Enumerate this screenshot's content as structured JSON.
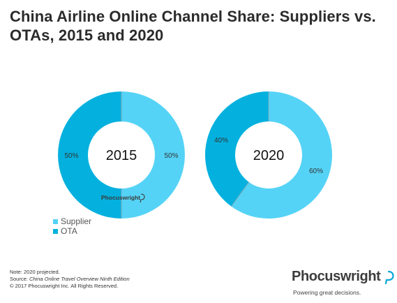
{
  "title": "China Airline Online Channel Share: Suppliers vs. OTAs, 2015 and 2020",
  "colors": {
    "supplier": "#55d3f6",
    "ota": "#04b1de",
    "divider": "#7ea9bd"
  },
  "chart_data": [
    {
      "type": "pie",
      "variant": "donut",
      "center_label": "2015",
      "slices": [
        {
          "label": "Supplier",
          "value": 50,
          "display": "50%"
        },
        {
          "label": "OTA",
          "value": 50,
          "display": "50%"
        }
      ],
      "watermark": "Phocuswright"
    },
    {
      "type": "pie",
      "variant": "donut",
      "center_label": "2020",
      "slices": [
        {
          "label": "Supplier",
          "value": 60,
          "display": "60%"
        },
        {
          "label": "OTA",
          "value": 40,
          "display": "40%"
        }
      ]
    }
  ],
  "legend": [
    {
      "label": "Supplier",
      "color": "#55d3f6"
    },
    {
      "label": "OTA",
      "color": "#04b1de"
    }
  ],
  "footer": {
    "note": "Note: 2020 projected.",
    "source_prefix": "Source: ",
    "source_title": "China Online Travel Overview Ninth Edition",
    "copyright": "© 2017 Phocuswright Inc. All Rights Reserved."
  },
  "brand": {
    "name": "Phocuswright",
    "tagline": "Powering great decisions.",
    "icon": "speech-bubble-icon"
  }
}
